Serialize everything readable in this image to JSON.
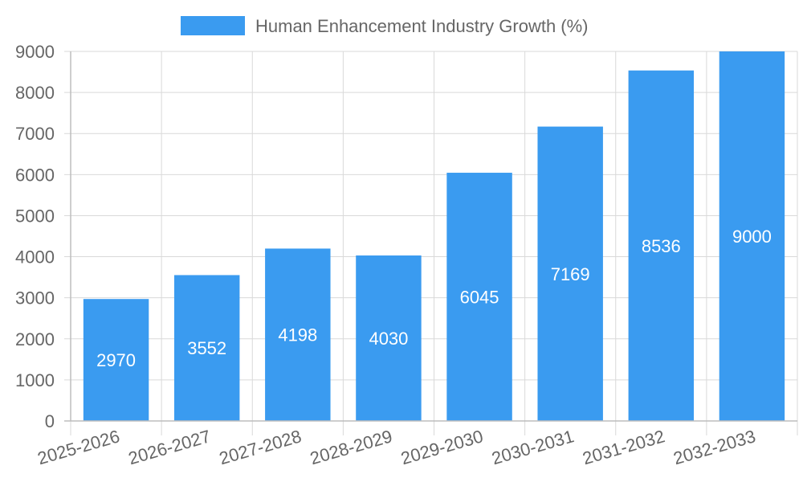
{
  "chart_data": {
    "type": "bar",
    "categories": [
      "2025-2026",
      "2026-2027",
      "2027-2028",
      "2028-2029",
      "2029-2030",
      "2030-2031",
      "2031-2032",
      "2032-2033"
    ],
    "series": [
      {
        "name": "Human Enhancement Industry Growth (%)",
        "values": [
          2970,
          3552,
          4198,
          4030,
          6045,
          7169,
          8536,
          9000
        ],
        "color": "#3a9bf0"
      }
    ],
    "ylim": [
      0,
      9000
    ],
    "yticks": [
      0,
      1000,
      2000,
      3000,
      4000,
      5000,
      6000,
      7000,
      8000,
      9000
    ],
    "grid": true,
    "legend_position": "top-center",
    "data_labels": true
  }
}
